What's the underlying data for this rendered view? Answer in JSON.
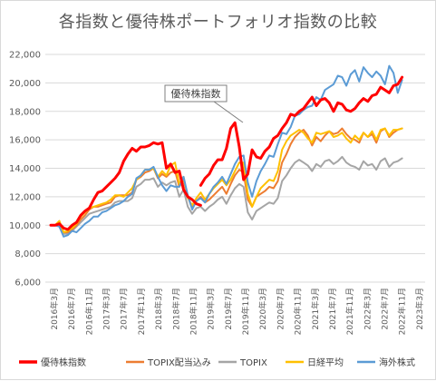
{
  "chart_data": {
    "type": "line",
    "title": "各指数と優待株ポートフォリオ指数の比較",
    "xlabel": "",
    "ylabel": "",
    "ylim": [
      6000,
      22000
    ],
    "yticks": [
      6000,
      8000,
      10000,
      12000,
      14000,
      16000,
      18000,
      20000,
      22000
    ],
    "ytick_labels": [
      "6,000",
      "8,000",
      "10,000",
      "12,000",
      "14,000",
      "16,000",
      "18,000",
      "20,000",
      "22,000"
    ],
    "xtick_labels": [
      "2016年3月",
      "2016年7月",
      "2016年11月",
      "2017年3月",
      "2017年7月",
      "2017年11月",
      "2018年3月",
      "2018年7月",
      "2018年11月",
      "2019年3月",
      "2019年7月",
      "2019年11月",
      "2020年3月",
      "2020年7月",
      "2020年11月",
      "2021年3月",
      "2021年7月",
      "2021年11月",
      "2022年3月",
      "2022年7月",
      "2022年11月",
      "2023年3月"
    ],
    "grid": true,
    "legend_position": "bottom",
    "annotation": {
      "text": "優待株指数"
    },
    "series": [
      {
        "name": "優待株指数",
        "color": "#ff0000",
        "width": 3,
        "values": [
          10000,
          10000,
          10100,
          9800,
          9700,
          10000,
          10200,
          10700,
          11000,
          11200,
          11800,
          12300,
          12400,
          12700,
          13000,
          13300,
          13700,
          14500,
          15000,
          15400,
          15200,
          15500,
          15500,
          15600,
          15800,
          15700,
          15800,
          14000,
          14300,
          13700,
          13800,
          12500,
          12000,
          11800,
          11500,
          11400,
          null,
          null,
          null,
          null,
          null,
          null,
          null,
          null,
          null,
          null,
          null,
          null,
          null,
          null,
          null,
          null,
          null,
          null,
          null,
          null,
          null,
          null,
          null,
          null,
          null,
          null,
          null,
          null,
          null,
          null,
          null,
          null,
          null,
          null,
          null,
          null,
          null,
          null,
          null,
          null,
          null,
          null,
          null,
          null,
          null,
          null,
          null
        ],
        "values2": [
          null,
          null,
          null,
          null,
          null,
          null,
          null,
          null,
          null,
          null,
          null,
          null,
          null,
          null,
          null,
          null,
          null,
          null,
          null,
          null,
          null,
          null,
          null,
          null,
          null,
          null,
          null,
          null,
          null,
          null,
          null,
          null,
          null,
          null,
          null,
          12800,
          13300,
          13600,
          14200,
          14600,
          14600,
          15400,
          16800,
          17200,
          15500,
          13200,
          13600,
          15300,
          14800,
          14700,
          15200,
          15500,
          16100,
          16300,
          16800,
          17200,
          17800,
          17700,
          18000,
          18200,
          18600,
          19000,
          18400,
          18800,
          18900,
          18600,
          18000,
          18600,
          18500,
          18100,
          18000,
          18200,
          18600,
          18900,
          18700,
          19100,
          19200,
          19700,
          19500,
          19300,
          19800,
          19900,
          20400
        ]
      },
      {
        "name": "TOPIX配当込み",
        "color": "#ed7d31",
        "width": 2,
        "values": [
          10000,
          10000,
          10100,
          9500,
          9500,
          9700,
          10000,
          10400,
          10700,
          11100,
          11300,
          11300,
          11400,
          11500,
          11600,
          12000,
          12100,
          12100,
          12100,
          12300,
          13200,
          13400,
          13700,
          13800,
          14000,
          13300,
          13600,
          13400,
          13700,
          13800,
          12700,
          13200,
          12000,
          11200,
          11700,
          12000,
          11600,
          11800,
          12100,
          12400,
          12700,
          12200,
          12900,
          13500,
          13900,
          13700,
          11800,
          11300,
          12000,
          12200,
          12400,
          12700,
          12600,
          13100,
          14400,
          15000,
          15700,
          16200,
          16500,
          16700,
          16300,
          15600,
          16200,
          15900,
          16300,
          16600,
          16400,
          16500,
          16800,
          16400,
          16100,
          16000,
          15800,
          16500,
          16200,
          16400,
          15800,
          16600,
          16800,
          16200,
          16500,
          16700,
          16800
        ]
      },
      {
        "name": "TOPIX",
        "color": "#a5a5a5",
        "width": 2,
        "values": [
          10000,
          10000,
          10000,
          9400,
          9400,
          9600,
          9900,
          10200,
          10500,
          10800,
          10900,
          11000,
          11100,
          11200,
          11300,
          11600,
          11700,
          11700,
          11700,
          11900,
          12700,
          12900,
          13200,
          13200,
          13300,
          12700,
          13000,
          12800,
          13000,
          13100,
          12000,
          12500,
          11300,
          10800,
          11200,
          11300,
          11000,
          11300,
          11500,
          11800,
          12000,
          11500,
          12100,
          12600,
          12900,
          12700,
          10900,
          10400,
          11000,
          11200,
          11400,
          11600,
          11500,
          11900,
          13100,
          13500,
          14000,
          14400,
          14600,
          14400,
          14200,
          13800,
          14300,
          14100,
          14500,
          14600,
          14300,
          14500,
          14800,
          14400,
          14200,
          14100,
          13900,
          14500,
          14200,
          14300,
          13900,
          14500,
          14700,
          14100,
          14400,
          14500,
          14700
        ]
      },
      {
        "name": "日経平均",
        "color": "#ffc000",
        "width": 2,
        "values": [
          10000,
          10000,
          10300,
          9500,
          9600,
          9800,
          10100,
          10600,
          10900,
          11200,
          11300,
          11400,
          11500,
          11600,
          11800,
          12100,
          12100,
          12000,
          12300,
          12600,
          13200,
          13500,
          13900,
          13900,
          14000,
          13400,
          13800,
          13500,
          14200,
          14400,
          12900,
          13400,
          11900,
          11400,
          11900,
          12300,
          11800,
          12200,
          12600,
          12900,
          13200,
          12800,
          13200,
          13800,
          14400,
          14400,
          12200,
          11300,
          12000,
          12600,
          12900,
          13200,
          13100,
          13800,
          15300,
          15900,
          16300,
          16500,
          16700,
          16500,
          16100,
          15800,
          16500,
          16400,
          16500,
          16600,
          16200,
          16300,
          16500,
          16100,
          15800,
          16300,
          16000,
          16500,
          16200,
          16600,
          16000,
          16700,
          16800,
          16300,
          16700,
          16700,
          16800
        ]
      },
      {
        "name": "海外株式",
        "color": "#5b9bd5",
        "width": 2,
        "values": [
          10000,
          10000,
          9900,
          9200,
          9300,
          9600,
          9500,
          9800,
          10100,
          10300,
          10600,
          10600,
          10900,
          11000,
          11200,
          11400,
          11500,
          11700,
          12000,
          12200,
          13300,
          13500,
          13900,
          13900,
          14100,
          13400,
          12800,
          12400,
          12800,
          12700,
          12700,
          13400,
          12100,
          11100,
          11700,
          11900,
          11600,
          12200,
          12700,
          13000,
          13400,
          12900,
          13600,
          14300,
          14800,
          14900,
          13000,
          12000,
          13100,
          13800,
          14300,
          14900,
          14800,
          15700,
          16500,
          16400,
          16900,
          17700,
          17800,
          18100,
          18300,
          18400,
          19000,
          18800,
          19500,
          19700,
          19900,
          20500,
          20400,
          19800,
          20600,
          20900,
          20100,
          21100,
          20700,
          20400,
          20800,
          20500,
          19900,
          21200,
          20700,
          19300,
          20200
        ]
      }
    ]
  }
}
